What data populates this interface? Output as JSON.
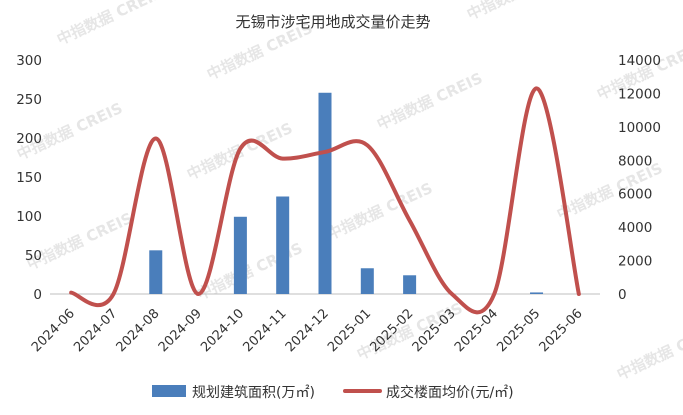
{
  "chart_data": {
    "type": "bar+line",
    "title": "无锡市涉宅用地成交量价走势",
    "categories": [
      "2024-06",
      "2024-07",
      "2024-08",
      "2024-09",
      "2024-10",
      "2024-11",
      "2024-12",
      "2025-01",
      "2025-02",
      "2025-03",
      "2025-04",
      "2025-05",
      "2025-06"
    ],
    "series": [
      {
        "name": "规划建筑面积(万㎡)",
        "type": "bar",
        "axis": "left",
        "values": [
          0,
          0,
          56,
          0,
          99,
          125,
          258,
          33,
          24,
          0,
          0,
          2,
          0
        ]
      },
      {
        "name": "成交楼面均价(元/㎡)",
        "type": "line",
        "smooth": true,
        "axis": "right",
        "values": [
          80,
          0,
          9300,
          0,
          8700,
          8100,
          8500,
          8900,
          4400,
          0,
          0,
          12300,
          0
        ]
      }
    ],
    "y_left": {
      "ylim": [
        0,
        300
      ],
      "ticks": [
        "0",
        "50",
        "100",
        "150",
        "200",
        "250",
        "300"
      ]
    },
    "y_right": {
      "ylim": [
        0,
        14000
      ],
      "ticks": [
        "0",
        "2000",
        "4000",
        "6000",
        "8000",
        "10000",
        "12000",
        "14000"
      ]
    },
    "colors": {
      "bar": "#4a7ebb",
      "line": "#c0504d"
    },
    "legend_position": "bottom",
    "grid": false,
    "watermark": "中指数据 CREIS"
  }
}
